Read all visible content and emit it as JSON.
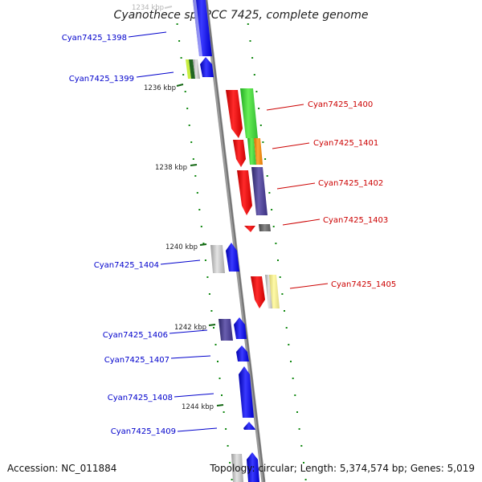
{
  "title": "Cyanothece sp. PCC 7425, complete genome",
  "footer": {
    "accession": "Accession: NC_011884",
    "summary": "Topology: circular; Length: 5,374,574 bp; Genes: 5,019"
  },
  "colors": {
    "forward_label": "#0000cc",
    "reverse_label": "#cc0000",
    "backbone": "#888888",
    "dots": "#118811"
  },
  "kbp_ticks": [
    {
      "label": "1234 kbp",
      "faded": true
    },
    {
      "label": "1236 kbp"
    },
    {
      "label": "1238 kbp"
    },
    {
      "label": "1240 kbp"
    },
    {
      "label": "1242 kbp"
    },
    {
      "label": "1244 kbp"
    }
  ],
  "gene_labels_left": [
    "Cyan7425_1398",
    "Cyan7425_1399",
    "Cyan7425_1404",
    "Cyan7425_1406",
    "Cyan7425_1407",
    "Cyan7425_1408",
    "Cyan7425_1409"
  ],
  "gene_labels_right": [
    "Cyan7425_1400",
    "Cyan7425_1401",
    "Cyan7425_1402",
    "Cyan7425_1403",
    "Cyan7425_1405"
  ]
}
